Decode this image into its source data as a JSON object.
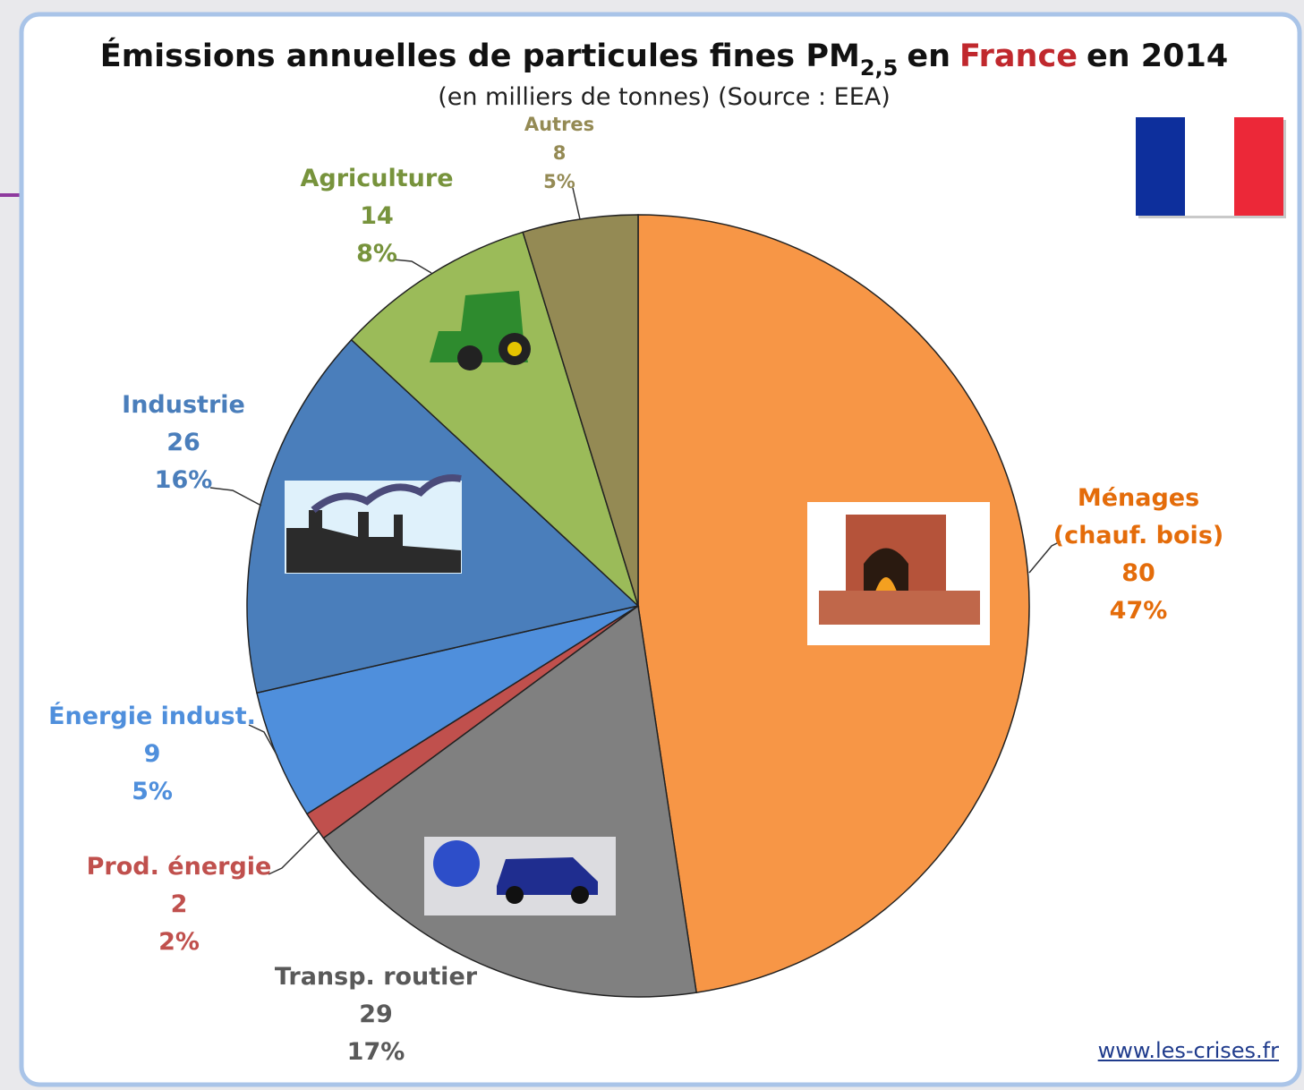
{
  "chart_data": {
    "type": "pie",
    "title": {
      "before": "Émissions annuelles de particules fines PM",
      "subscript": "2,5",
      "middle": "en",
      "highlight": "France",
      "after": "en 2014"
    },
    "subtitle": "(en milliers de tonnes) (Source : EEA)",
    "categories": [
      "Ménages (chauf. bois)",
      "Transp. routier",
      "Prod. énergie",
      "Énergie indust.",
      "Industrie",
      "Agriculture",
      "Autres"
    ],
    "values": [
      80,
      29,
      2,
      9,
      26,
      14,
      8
    ],
    "percent_labels": [
      "47%",
      "17%",
      "2%",
      "5%",
      "16%",
      "8%",
      "5%"
    ],
    "colors": [
      "#f79646",
      "#808080",
      "#c0504d",
      "#4f8fdc",
      "#4a7ebb",
      "#9bbb59",
      "#948a54"
    ],
    "label_colors": [
      "#e46c0a",
      "#595959",
      "#c0504d",
      "#4f8fdc",
      "#4a7ebb",
      "#77933c",
      "#948a54"
    ],
    "footer": "www.les-crises.fr"
  }
}
